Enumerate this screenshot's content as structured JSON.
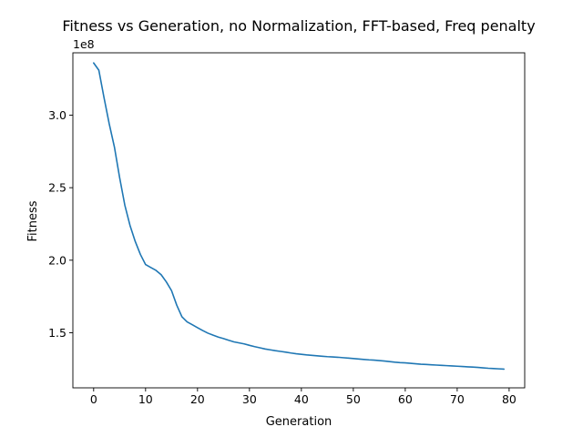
{
  "chart_data": {
    "type": "line",
    "title": "Fitness vs Generation, no Normalization, FFT-based, Freq penalty",
    "xlabel": "Generation",
    "ylabel": "Fitness",
    "y_offset_label": "1e8",
    "xlim": [
      -4,
      83
    ],
    "ylim": [
      1.12,
      3.43
    ],
    "x_ticks": [
      0,
      10,
      20,
      30,
      40,
      50,
      60,
      70,
      80
    ],
    "x_tick_labels": [
      "0",
      "10",
      "20",
      "30",
      "40",
      "50",
      "60",
      "70",
      "80"
    ],
    "y_ticks": [
      1.5,
      2.0,
      2.5,
      3.0
    ],
    "y_tick_labels": [
      "1.5",
      "2.0",
      "2.5",
      "3.0"
    ],
    "y_units_multiplier": 100000000,
    "grid": false,
    "line_color": "#1f77b4",
    "series": [
      {
        "x": [
          0,
          1,
          2,
          3,
          4,
          5,
          6,
          7,
          8,
          9,
          10,
          11,
          12,
          13,
          14,
          15,
          16,
          17,
          18,
          19,
          20,
          21,
          22,
          23,
          24,
          25,
          26,
          27,
          28,
          29,
          30,
          31,
          32,
          33,
          34,
          35,
          36,
          37,
          38,
          39,
          40,
          41,
          42,
          43,
          44,
          45,
          46,
          47,
          48,
          49,
          50,
          51,
          52,
          53,
          54,
          55,
          56,
          57,
          58,
          59,
          60,
          61,
          62,
          63,
          64,
          65,
          66,
          67,
          68,
          69,
          70,
          71,
          72,
          73,
          74,
          75,
          76,
          77,
          78,
          79
        ],
        "values": [
          3.36,
          3.31,
          3.12,
          2.94,
          2.78,
          2.57,
          2.38,
          2.24,
          2.13,
          2.04,
          1.97,
          1.95,
          1.93,
          1.9,
          1.85,
          1.79,
          1.69,
          1.61,
          1.575,
          1.555,
          1.535,
          1.515,
          1.497,
          1.483,
          1.47,
          1.46,
          1.448,
          1.437,
          1.43,
          1.423,
          1.413,
          1.404,
          1.396,
          1.388,
          1.382,
          1.376,
          1.371,
          1.366,
          1.36,
          1.355,
          1.351,
          1.347,
          1.344,
          1.341,
          1.338,
          1.335,
          1.333,
          1.331,
          1.328,
          1.325,
          1.322,
          1.319,
          1.316,
          1.313,
          1.311,
          1.308,
          1.305,
          1.301,
          1.297,
          1.294,
          1.292,
          1.289,
          1.286,
          1.283,
          1.281,
          1.279,
          1.277,
          1.275,
          1.273,
          1.271,
          1.269,
          1.267,
          1.265,
          1.263,
          1.261,
          1.258,
          1.255,
          1.253,
          1.251,
          1.249
        ]
      }
    ]
  }
}
